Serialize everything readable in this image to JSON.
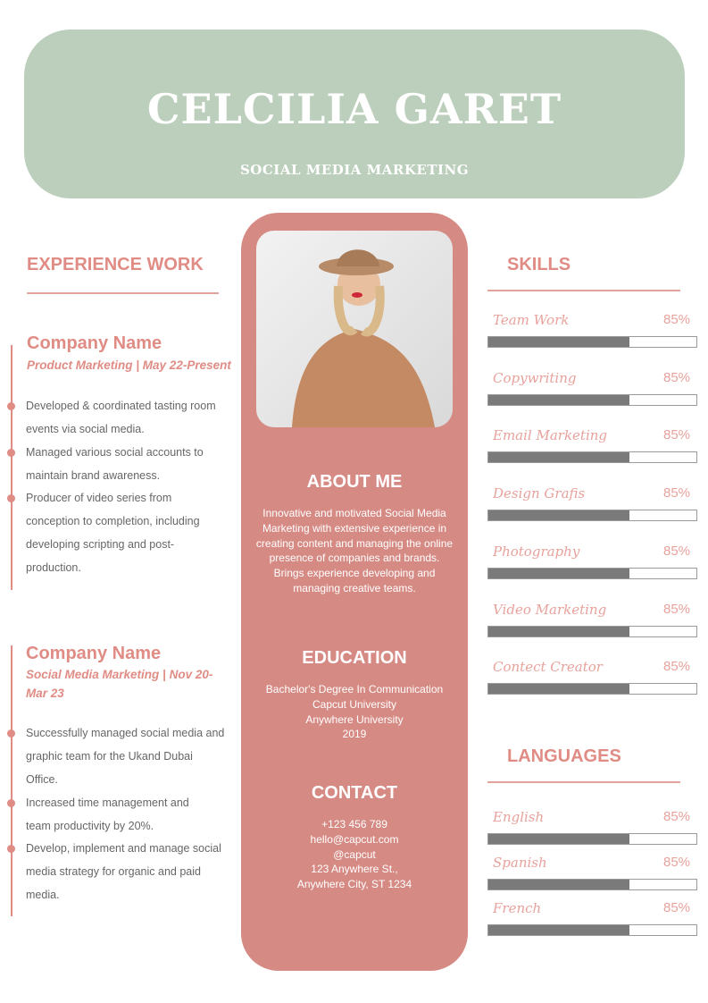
{
  "header": {
    "name": "CELCILIA GARET",
    "title": "SOCIAL MEDIA MARKETING"
  },
  "colors": {
    "header_bg": "#bccfbc",
    "accent": "#e08c85",
    "center_bg": "#d68a84",
    "bar_fill": "#7a7a7a"
  },
  "experience": {
    "heading": "EXPERIENCE WORK",
    "jobs": [
      {
        "company": "Company Name",
        "position": "Product Marketing | May 22-Present",
        "bullets": [
          "Developed & coordinated tasting room events via social media.",
          "Managed various social accounts to maintain brand awareness.",
          "Producer of video series from conception to completion, including developing scripting and post-production."
        ]
      },
      {
        "company": "Company Name",
        "position": "Social Media Marketing | Nov 20-Mar 23",
        "bullets": [
          "Successfully managed social media and graphic team for the Ukand Dubai Office.",
          "Increased time management and team productivity by 20%.",
          "Develop, implement and manage social media strategy for organic and paid media."
        ]
      }
    ]
  },
  "about": {
    "heading": "ABOUT ME",
    "text": "Innovative and motivated Social Media Marketing with extensive experience in creating content and managing the online presence of companies and brands. Brings experience developing and managing creative teams."
  },
  "education": {
    "heading": "EDUCATION",
    "lines": [
      "Bachelor's Degree In Communication",
      "Capcut University",
      "Anywhere University",
      "2019"
    ]
  },
  "contact": {
    "heading": "CONTACT",
    "lines": [
      "+123  456 789",
      "hello@capcut.com",
      "@capcut",
      "123 Anywhere St.,",
      "Anywhere City, ST 1234"
    ]
  },
  "skills": {
    "heading": "SKILLS",
    "items": [
      {
        "label": "Team Work",
        "percent": "85%",
        "fill": 0.68
      },
      {
        "label": "Copywriting",
        "percent": "85%",
        "fill": 0.68
      },
      {
        "label": "Email Marketing",
        "percent": "85%",
        "fill": 0.68
      },
      {
        "label": "Design Grafis",
        "percent": "85%",
        "fill": 0.68
      },
      {
        "label": "Photography",
        "percent": "85%",
        "fill": 0.68
      },
      {
        "label": "Video Marketing",
        "percent": "85%",
        "fill": 0.68
      },
      {
        "label": "Contect Creator",
        "percent": "85%",
        "fill": 0.68
      }
    ]
  },
  "languages": {
    "heading": "LANGUAGES",
    "items": [
      {
        "label": "English",
        "percent": "85%",
        "fill": 0.68
      },
      {
        "label": "Spanish",
        "percent": "85%",
        "fill": 0.68
      },
      {
        "label": "French",
        "percent": "85%",
        "fill": 0.68
      }
    ]
  }
}
